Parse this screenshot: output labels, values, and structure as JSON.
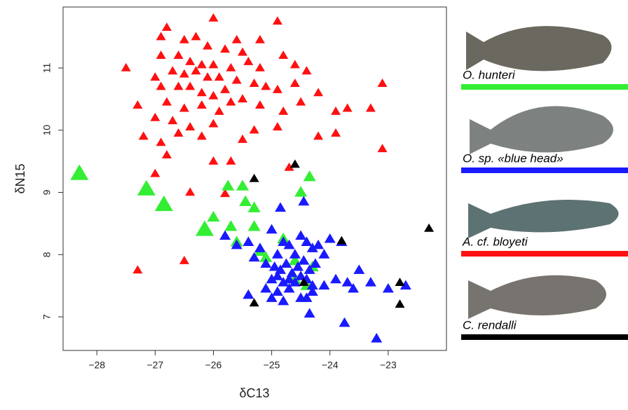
{
  "chart_data": {
    "type": "scatter",
    "xlabel": "δC13",
    "ylabel": "δN15",
    "xlim": [
      -28.58,
      -22.0
    ],
    "ylim": [
      6.46,
      11.98
    ],
    "xticks": [
      {
        "value": -28,
        "label": "−28"
      },
      {
        "value": -27,
        "label": "−27"
      },
      {
        "value": -26,
        "label": "−26"
      },
      {
        "value": -25,
        "label": "−25"
      },
      {
        "value": -24,
        "label": "−24"
      },
      {
        "value": -23,
        "label": "−23"
      }
    ],
    "yticks": [
      7,
      8,
      9,
      10,
      11
    ],
    "series": [
      {
        "name": "O. hunteri",
        "color": "#33ee33",
        "x": [
          -28.3,
          -27.15,
          -26.85,
          -26.15,
          -26.0,
          -25.75,
          -25.5,
          -25.3,
          -25.45,
          -25.3,
          -25.7,
          -24.35,
          -24.5,
          -25.6,
          -25.1,
          -24.8,
          -24.6,
          -24.3,
          -24.6,
          -24.4,
          -25.2
        ],
        "values": [
          9.3,
          9.05,
          8.8,
          8.4,
          8.6,
          9.1,
          9.1,
          8.75,
          8.85,
          8.45,
          8.45,
          9.25,
          9.0,
          8.2,
          7.95,
          8.25,
          7.9,
          7.8,
          7.6,
          7.5,
          8.05
        ]
      },
      {
        "name": "O. sp. «blue head»",
        "color": "#1a1aff",
        "x": [
          -25.8,
          -25.6,
          -25.4,
          -25.2,
          -25.0,
          -24.9,
          -24.8,
          -24.7,
          -24.6,
          -24.5,
          -24.4,
          -24.3,
          -24.2,
          -24.1,
          -24.0,
          -25.3,
          -25.1,
          -24.95,
          -24.85,
          -24.75,
          -24.65,
          -24.55,
          -24.45,
          -24.35,
          -24.25,
          -25.0,
          -24.9,
          -24.8,
          -24.7,
          -24.6,
          -24.5,
          -24.4,
          -24.3,
          -25.1,
          -24.9,
          -24.7,
          -24.5,
          -24.3,
          -24.1,
          -23.9,
          -23.7,
          -23.5,
          -23.3,
          -23.0,
          -22.7,
          -23.6,
          -23.8,
          -25.4,
          -25.0,
          -24.8,
          -24.4,
          -24.35,
          -23.75,
          -23.2,
          -24.85,
          -24.45
        ],
        "values": [
          8.3,
          8.15,
          8.2,
          8.1,
          8.4,
          8.0,
          8.2,
          8.15,
          8.0,
          8.3,
          8.2,
          8.1,
          8.15,
          8.0,
          8.25,
          7.95,
          7.85,
          7.8,
          7.75,
          7.85,
          7.7,
          7.8,
          7.9,
          7.75,
          7.85,
          7.6,
          7.65,
          7.55,
          7.6,
          7.55,
          7.65,
          7.6,
          7.5,
          7.45,
          7.4,
          7.45,
          7.3,
          7.4,
          7.5,
          7.6,
          7.55,
          7.75,
          7.55,
          7.45,
          7.5,
          7.45,
          8.2,
          7.35,
          7.3,
          7.25,
          7.3,
          7.05,
          6.9,
          6.65,
          8.75,
          8.85
        ]
      },
      {
        "name": "A. cf. bloyeti",
        "color": "#ff1010",
        "x": [
          -26.0,
          -24.9,
          -26.8,
          -26.9,
          -26.3,
          -26.5,
          -25.6,
          -25.2,
          -26.1,
          -25.8,
          -25.5,
          -26.6,
          -26.9,
          -26.4,
          -26.2,
          -26.0,
          -25.7,
          -25.4,
          -25.2,
          -24.8,
          -24.6,
          -24.4,
          -27.5,
          -27.0,
          -26.7,
          -26.5,
          -26.3,
          -26.1,
          -25.9,
          -25.6,
          -25.3,
          -25.1,
          -24.9,
          -24.6,
          -24.2,
          -26.9,
          -26.6,
          -26.4,
          -26.2,
          -26.0,
          -25.8,
          -25.5,
          -25.2,
          -24.8,
          -24.5,
          -23.1,
          -27.3,
          -26.8,
          -26.5,
          -26.2,
          -25.9,
          -25.7,
          -27.0,
          -26.7,
          -26.4,
          -26.0,
          -25.3,
          -24.9,
          -23.9,
          -23.7,
          -23.3,
          -27.2,
          -26.9,
          -26.6,
          -26.2,
          -25.5,
          -24.2,
          -23.9,
          -26.8,
          -26.0,
          -25.7,
          -23.1,
          -27.0,
          -26.4,
          -25.8,
          -24.7,
          -27.3,
          -26.5
        ],
        "values": [
          11.8,
          11.75,
          11.65,
          11.5,
          11.5,
          11.45,
          11.45,
          11.45,
          11.35,
          11.3,
          11.25,
          11.2,
          11.2,
          11.1,
          11.05,
          11.05,
          11.0,
          11.1,
          11.0,
          11.2,
          11.05,
          10.95,
          11.0,
          10.85,
          10.95,
          10.9,
          10.95,
          10.85,
          10.85,
          10.8,
          10.75,
          10.7,
          10.65,
          10.75,
          10.6,
          10.7,
          10.7,
          10.7,
          10.6,
          10.55,
          10.65,
          10.5,
          10.4,
          10.3,
          10.45,
          10.75,
          10.4,
          10.45,
          10.35,
          10.4,
          10.3,
          10.45,
          10.2,
          10.15,
          10.05,
          10.1,
          10.0,
          10.05,
          10.3,
          10.35,
          10.35,
          9.9,
          9.8,
          9.95,
          9.9,
          9.85,
          9.9,
          9.95,
          9.6,
          9.5,
          9.5,
          9.7,
          9.3,
          9.0,
          8.98,
          9.4,
          7.75,
          7.9
        ]
      },
      {
        "name": "C. rendalli",
        "color": "#000000",
        "x": [
          -25.3,
          -24.6,
          -23.8,
          -22.3,
          -25.3,
          -24.45,
          -22.8,
          -22.8
        ],
        "values": [
          9.22,
          9.45,
          8.22,
          8.42,
          7.22,
          7.55,
          7.55,
          7.2
        ]
      }
    ]
  }
}
